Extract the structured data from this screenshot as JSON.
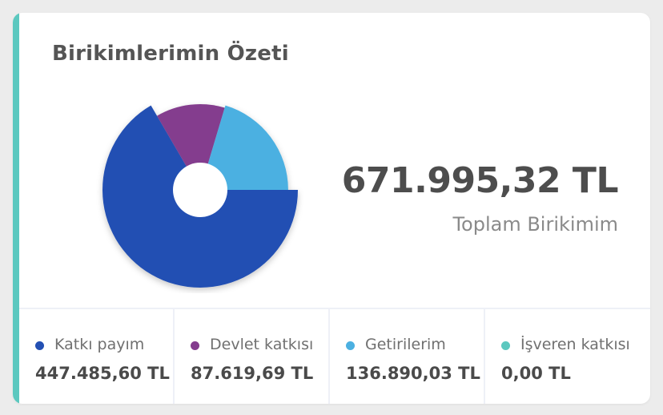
{
  "card": {
    "title": "Birikimlerimin Özeti",
    "total_amount": "671.995,32 TL",
    "total_label": "Toplam Birikimim",
    "accent_color": "#5cc8bf"
  },
  "legend": [
    {
      "label": "Katkı payım",
      "value": "447.485,60 TL",
      "color": "#2350b3"
    },
    {
      "label": "Devlet katkısı",
      "value": "87.619,69 TL",
      "color": "#843c8e"
    },
    {
      "label": "Getirilerim",
      "value": "136.890,03 TL",
      "color": "#4cb0e1"
    },
    {
      "label": "İşveren katkısı",
      "value": "0,00 TL",
      "color": "#5cc8bf"
    }
  ],
  "chart_data": {
    "type": "pie",
    "categories": [
      "Katkı payım",
      "Devlet katkısı",
      "Getirilerim",
      "İşveren katkısı"
    ],
    "values": [
      447485.6,
      87619.69,
      136890.03,
      0.0
    ],
    "colors": [
      "#2350b3",
      "#843c8e",
      "#4cb0e1",
      "#5cc8bf"
    ]
  }
}
